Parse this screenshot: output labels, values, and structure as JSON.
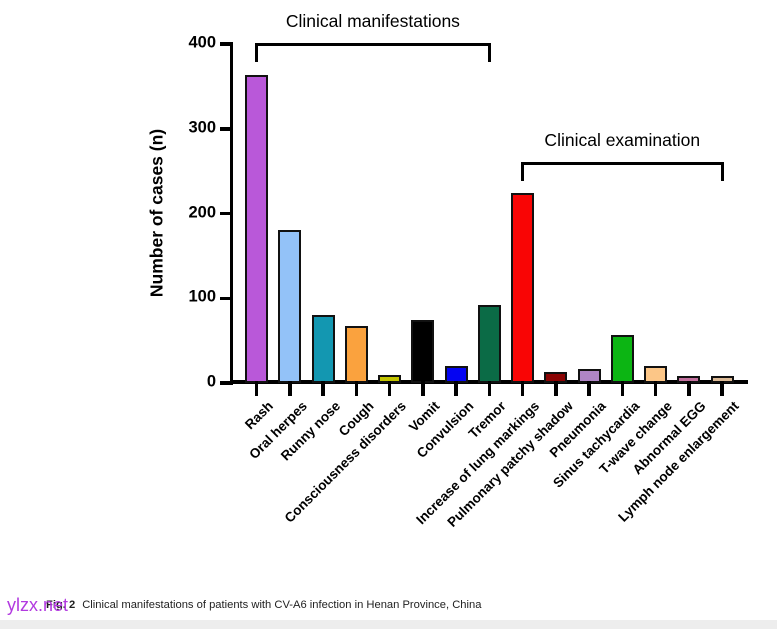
{
  "figure": {
    "caption_label": "Fig. 2",
    "caption_text": "Clinical manifestations of patients with CV-A6 infection in Henan Province, China",
    "watermark": "ylzx.net",
    "watermark_color": "#b23ae0"
  },
  "chart_data": {
    "type": "bar",
    "title": "",
    "xlabel": "",
    "ylabel": "Number of cases (n)",
    "ylim": [
      0,
      400
    ],
    "yticks": [
      0,
      100,
      200,
      300,
      400
    ],
    "grid": false,
    "legend_position": "none",
    "categories": [
      "Rash",
      "Oral herpes",
      "Runny nose",
      "Cough",
      "Consciousness disorders",
      "Vomit",
      "Convulsion",
      "Tremor",
      "Increase of lung markings",
      "Pulmonary patchy shadow",
      "Pneumonia",
      "Sinus tachycardia",
      "T-wave change",
      "Abnormal EGG",
      "Lymph node enlargement"
    ],
    "values": [
      364,
      181,
      80,
      67,
      9,
      74,
      20,
      92,
      224,
      13,
      16,
      57,
      20,
      8,
      8
    ],
    "bar_colors": [
      "#b958d9",
      "#93c2f8",
      "#1397b1",
      "#faa23e",
      "#c2c400",
      "#000000",
      "#0404f2",
      "#0b6b46",
      "#f90505",
      "#8b0303",
      "#af85c6",
      "#0cb513",
      "#fcc687",
      "#c3709e",
      "#dcba96"
    ],
    "annotations": [
      {
        "label": "Clinical manifestations",
        "from": 0,
        "to": 7,
        "from_category": "Rash",
        "to_category": "Tremor"
      },
      {
        "label": "Clinical examination",
        "from": 8,
        "to": 14,
        "from_category": "Increase of lung markings",
        "to_category": "Lymph node enlargement"
      }
    ]
  }
}
